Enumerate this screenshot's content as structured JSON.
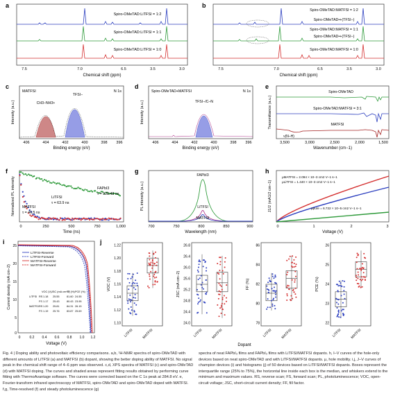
{
  "panels": {
    "a": {
      "letter": "a",
      "xlabel": "Chemical shift (ppm)",
      "ticks": [
        "7.5",
        "7.0",
        "6.5",
        "3.5",
        "3.0"
      ],
      "labels": [
        "Spiro-OMeTAD:LiTFSI = 1:2",
        "Spiro-OMeTAD:LiTFSI = 1:1",
        "Spiro-OMeTAD:LiTFSI = 1:0"
      ]
    },
    "b": {
      "letter": "b",
      "xlabel": "Chemical shift (ppm)",
      "ticks": [
        "7.5",
        "7.0",
        "6.5",
        "3.5",
        "3.0"
      ],
      "labels": [
        "Spiro-OMeTAD:MATFSI = 1:2",
        "Spiro-OMeTAD:MATFSI = 1:1",
        "Spiro-OMeTAD:MATFSI = 1:0"
      ],
      "annot": [
        "Spiro-OMeTAD•+(TFSI−)",
        "Spiro-OMeTAD•+(TFSI−)"
      ]
    },
    "c": {
      "letter": "c",
      "title": "MATFSI",
      "tag": "N 1s",
      "peak1": "CH3–NH3+",
      "peak2": "TFSI−",
      "xlabel": "Binding energy (eV)",
      "ylabel": "Intensity (a.u.)",
      "ticks": [
        "406",
        "404",
        "402",
        "400",
        "398",
        "396"
      ]
    },
    "d": {
      "letter": "d",
      "title": "Spiro-OMeTAD+MATFSI",
      "tag": "N 1s",
      "peak": "TFSI−/C–N",
      "xlabel": "Binding energy (eV)",
      "ylabel": "Intensity (a.u.)",
      "ticks": [
        "406",
        "404",
        "402",
        "400",
        "398",
        "396"
      ]
    },
    "e": {
      "letter": "e",
      "labels": [
        "Spiro-OMeTAD",
        "Spiro-OMeTAD:MATFSI = 3:1",
        "MATFSI",
        "ν(N–H)"
      ],
      "xlabel": "Wavenumber (cm−1)",
      "ylabel": "Transmittance (a.u.)",
      "ticks": [
        "3,500",
        "3,000",
        "2,500",
        "2,000",
        "1,500"
      ]
    },
    "f": {
      "letter": "f",
      "xlabel": "Time (ns)",
      "ylabel": "Normalized PL intensity",
      "ticks": [
        "0",
        "250",
        "500",
        "750",
        "1,000"
      ],
      "labels": [
        "FAPbI3",
        "τ = 928.48 ns",
        "LiTFSI",
        "τ = 63.9 ns",
        "MATFSI",
        "τ = 46.5 ns"
      ]
    },
    "g": {
      "letter": "g",
      "xlabel": "Wavelength (nm)",
      "ylabel": "PL intensity (a.u.)",
      "ticks": [
        "700",
        "750",
        "800",
        "850",
        "900"
      ],
      "labels": [
        "FAPbI3",
        "LiTFSI",
        "MATFSI"
      ]
    },
    "h": {
      "letter": "h",
      "xlabel": "Voltage (V)",
      "ylabel": "J1/2 (mA1/2 cm−1)",
      "ticks": [
        "0",
        "1",
        "2",
        "3"
      ],
      "labels": [
        "μMATFSI = 2.094 × 10−3 cm2 V−1 s−1",
        "μLiTFSI = 1.440 × 10−3 cm2 V−1 s−1",
        "μpure = 6.722 × 10−5 cm2 V−1 s−1"
      ]
    },
    "i": {
      "letter": "i",
      "xlabel": "Voltage (V)",
      "ylabel": "Current density (mA cm−2)",
      "xticks": [
        "0",
        "0.2",
        "0.4",
        "0.6",
        "0.8",
        "1.0",
        "1.2"
      ],
      "yticks": [
        "25",
        "20",
        "15",
        "10",
        "5",
        "0"
      ],
      "legend": [
        "LiTFSI-Reverse",
        "LiTFSI-Forward",
        "MATFSI-Reverse",
        "MATFSI-Forward"
      ],
      "table_header": [
        "VOC (V)",
        "JSC (mA cm−2)",
        "FF (%)",
        "PCE (%)"
      ],
      "table_rows": [
        [
          "LiTFSI",
          "RS",
          "1.18",
          "25.55",
          "81.60",
          "24.55"
        ],
        [
          "",
          "FS",
          "1.17",
          "25.43",
          "80.43",
          "23.95"
        ],
        [
          "MATFSI",
          "RS",
          "1.20",
          "25.81",
          "84.31",
          "26.15"
        ],
        [
          "",
          "FS",
          "1.19",
          "25.76",
          "83.87",
          "25.69"
        ]
      ]
    },
    "j": {
      "letter": "j",
      "xlabel": "Dopant",
      "cats": [
        "LiTFSI",
        "MATFSI"
      ],
      "plots": [
        {
          "ylabel": "VOC (V)",
          "ticks": [
            "1.22",
            "1.20",
            "1.18",
            "1.16",
            "1.14",
            "1.12",
            "1.10"
          ]
        },
        {
          "ylabel": "JSC (mA cm−2)",
          "ticks": [
            "26.8",
            "26.4",
            "26.0",
            "25.6",
            "25.2",
            "24.8",
            "24.4",
            "24.0"
          ]
        },
        {
          "ylabel": "FF (%)",
          "ticks": [
            "86",
            "84",
            "82",
            "80",
            "78"
          ]
        },
        {
          "ylabel": "PCE (%)",
          "ticks": [
            "26",
            "25",
            "24",
            "23",
            "22"
          ]
        }
      ]
    }
  },
  "colors": {
    "blue": "#2c3fbf",
    "red": "#d42e2e",
    "green": "#2e9a3a",
    "darkred": "#a32020"
  },
  "caption": {
    "left": "Fig. 4 | Doping ability and photovoltaic efficiency comparisons. a,b, ¹H-NMR spectra of spiro-OMeTAD with different amounts of LiTFSI (a) and MATFSI (b) dopant, showing the better doping ability of MATFSI. No signal peak in the chemical shift range of 4–6 ppm was observed. c,d, XPS spectra of MATFSI (c) and spiro-OMeTAD (d) with MATFSI doping. The curves and shaded areas represent fitting results obtained by performing curve fitting with ThermoAvantage software. The curves were corrected based on the C 1s peak at 284.8 eV. e, Fourier-transform infrared spectroscopy of MATFSI, spiro-OMeTAD and spiro-OMeTAD doped with MATFSI. f,g, Time-resolved (f) and steady photoluminescence (g)",
    "right": "spectra of neat FAPbI₃ films and FAPbI₃ films with LiTFSI/MATFSI dopants. h, I–V curves of the hole-only devices based on neat spiro-OMeTAD and with LiTFSI/MATFSI dopants. μ, hole mobility. i,j, J–V curves of champion devices (i) and histograms (j) of 50 devices based on LiTFSI/MATFSI dopants. Boxes represent the interquartile range (25% to 75%), the horizontal line inside each box is the median, and whiskers extend to the minimum and maximum values. RS, reverse scan; FS, forward scan; PL, photoluminescence; VOC, open-circuit voltage; JSC, short-circuit current density; FF, fill factor."
  }
}
